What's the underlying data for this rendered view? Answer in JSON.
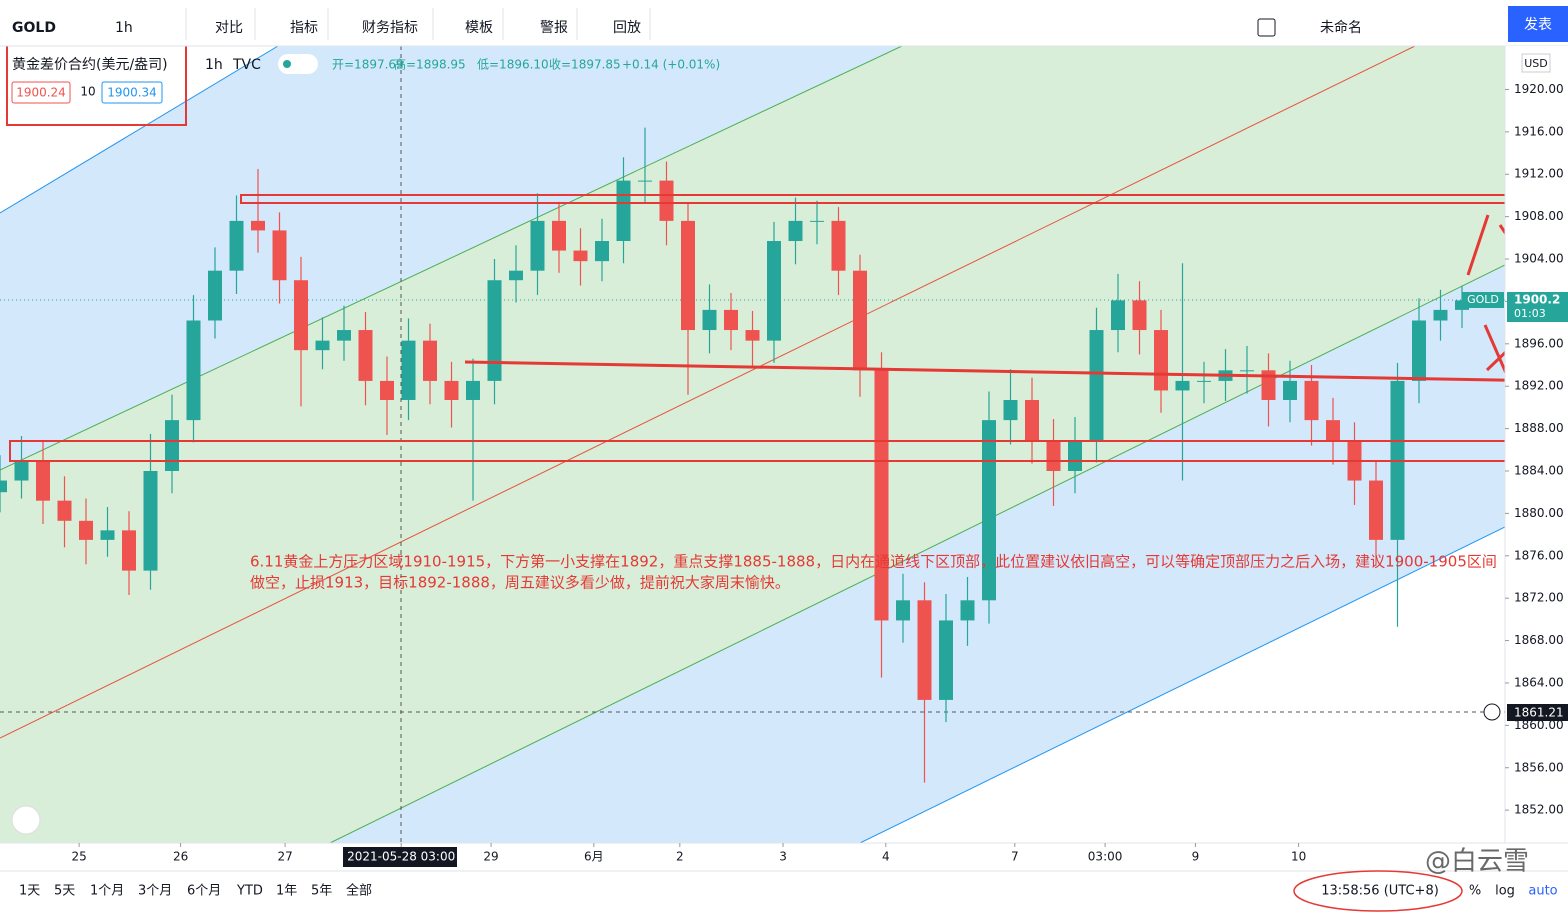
{
  "toolbar": {
    "symbol": "GOLD",
    "interval": "1h",
    "items": [
      "对比",
      "指标",
      "财务指标",
      "模板",
      "警报",
      "回放"
    ],
    "layout_name": "未命名",
    "publish": "发表"
  },
  "legend": {
    "name": "黄金差价合约(美元/盎司)",
    "interval": "1h",
    "source": "TVC",
    "open": "开=1897.69",
    "high": "高=1898.95",
    "low": "低=1896.10",
    "close": "收=1897.85",
    "change": "+0.14 (+0.01%)",
    "bid": "1900.24",
    "spread": "10",
    "ask": "1900.34"
  },
  "price_scale": {
    "currency": "USD",
    "symbol_label": "GOLD",
    "last_price": "1900.2",
    "countdown": "01:03",
    "crosshair_price": "1861.21"
  },
  "chart_data": {
    "type": "candlestick",
    "up_color": "#26a69a",
    "down_color": "#ef5350",
    "x": [
      0,
      5,
      10,
      15,
      20,
      25,
      30,
      35,
      40,
      45,
      50,
      55,
      60,
      65,
      70,
      75,
      80,
      85,
      90,
      95,
      100,
      105,
      110,
      115,
      120,
      125,
      130,
      135,
      140,
      145,
      150,
      155,
      160,
      165,
      170,
      175,
      180,
      185,
      190,
      195,
      200,
      205,
      210,
      215,
      220,
      225,
      230,
      235,
      240,
      245,
      250,
      255,
      260,
      265,
      270,
      275,
      280,
      285,
      290,
      295,
      300,
      305,
      310,
      315,
      320,
      325,
      330,
      335,
      340
    ],
    "open": [
      1882,
      1883.1,
      1885,
      1881.2,
      1879.3,
      1877.5,
      1878.4,
      1874.6,
      1884,
      1888.8,
      1898.2,
      1902.9,
      1907.6,
      1906.7,
      1902,
      1895.4,
      1896.3,
      1897.3,
      1892.5,
      1890.7,
      1896.3,
      1892.5,
      1890.7,
      1892.5,
      1902,
      1902.9,
      1907.6,
      1904.8,
      1903.8,
      1905.7,
      1911.4,
      1911.4,
      1907.6,
      1897.3,
      1899.2,
      1897.3,
      1896.3,
      1905.7,
      1907.6,
      1907.6,
      1902.9,
      1893.5,
      1869.9,
      1871.8,
      1862.4,
      1869.9,
      1871.8,
      1888.8,
      1890.7,
      1886.9,
      1884,
      1886.9,
      1897.3,
      1900.1,
      1897.3,
      1891.6,
      1892.5,
      1892.5,
      1893.5,
      1893.5,
      1890.7,
      1892.5,
      1888.8,
      1886.9,
      1883.1,
      1877.5,
      1892.5,
      1898.2,
      1899.2
    ],
    "high": [
      1885.5,
      1887.3,
      1886.8,
      1883.5,
      1881.4,
      1880.6,
      1880.2,
      1887.5,
      1891.2,
      1900.6,
      1905.1,
      1910.0,
      1912.5,
      1908.4,
      1904.2,
      1898.5,
      1899.6,
      1899.0,
      1894.8,
      1898.4,
      1897.9,
      1894.3,
      1894.6,
      1904.0,
      1905.3,
      1910.2,
      1909.4,
      1906.9,
      1907.8,
      1913.6,
      1916.4,
      1913.2,
      1909.3,
      1901.6,
      1900.8,
      1899.1,
      1907.5,
      1909.8,
      1909.5,
      1908.9,
      1904.4,
      1895.2,
      1874.3,
      1873.5,
      1872.4,
      1874.0,
      1891.5,
      1893.6,
      1892.8,
      1888.9,
      1889.1,
      1899.4,
      1902.6,
      1901.9,
      1899.2,
      1903.6,
      1894.3,
      1895.5,
      1895.8,
      1895.1,
      1894.4,
      1894.0,
      1890.9,
      1888.6,
      1884.9,
      1894.2,
      1900.3,
      1901.1,
      1901.5
    ],
    "low": [
      1880.1,
      1881.4,
      1879.0,
      1876.8,
      1875.2,
      1875.9,
      1872.3,
      1872.8,
      1881.9,
      1886.7,
      1896.5,
      1900.7,
      1904.6,
      1899.8,
      1890.1,
      1893.6,
      1894.4,
      1890.2,
      1887.4,
      1888.8,
      1890.3,
      1888.1,
      1881.2,
      1890.3,
      1899.9,
      1900.6,
      1902.7,
      1901.5,
      1901.9,
      1903.6,
      1909.2,
      1905.3,
      1891.2,
      1895.1,
      1895.4,
      1893.9,
      1894.2,
      1903.5,
      1905.4,
      1900.6,
      1891.0,
      1864.5,
      1867.8,
      1854.6,
      1860.3,
      1867.5,
      1869.6,
      1886.5,
      1884.7,
      1880.7,
      1881.9,
      1884.8,
      1895.2,
      1895.0,
      1889.5,
      1883.1,
      1890.4,
      1890.6,
      1891.3,
      1888.2,
      1888.6,
      1886.4,
      1884.6,
      1880.8,
      1875.1,
      1869.3,
      1890.4,
      1896.3,
      1897.5
    ],
    "close": [
      1883.1,
      1885,
      1881.2,
      1879.3,
      1877.5,
      1878.4,
      1874.6,
      1884,
      1888.8,
      1898.2,
      1902.9,
      1907.6,
      1906.7,
      1902,
      1895.4,
      1896.3,
      1897.3,
      1892.5,
      1890.7,
      1896.3,
      1892.5,
      1890.7,
      1892.5,
      1902,
      1902.9,
      1907.6,
      1904.8,
      1903.8,
      1905.7,
      1911.4,
      1911.4,
      1907.6,
      1897.3,
      1899.2,
      1897.3,
      1896.3,
      1905.7,
      1907.6,
      1907.6,
      1902.9,
      1893.5,
      1869.9,
      1871.8,
      1862.4,
      1869.9,
      1871.8,
      1888.8,
      1890.7,
      1886.9,
      1884,
      1886.9,
      1897.3,
      1900.1,
      1897.3,
      1891.6,
      1892.5,
      1892.5,
      1893.5,
      1893.5,
      1890.7,
      1892.5,
      1888.8,
      1886.9,
      1883.1,
      1877.5,
      1892.5,
      1898.2,
      1899.2,
      1900.1
    ],
    "xlim": [
      0,
      350
    ],
    "xticks": [
      {
        "value": 18.4,
        "label": "25"
      },
      {
        "value": 42,
        "label": "26"
      },
      {
        "value": 66.3,
        "label": "27"
      },
      {
        "value": 93.3,
        "label": "2021-05-28  03:00"
      },
      {
        "value": 114.2,
        "label": "29"
      },
      {
        "value": 138.1,
        "label": "6月"
      },
      {
        "value": 158.1,
        "label": "2"
      },
      {
        "value": 182.1,
        "label": "3"
      },
      {
        "value": 206,
        "label": "4"
      },
      {
        "value": 236,
        "label": "7"
      },
      {
        "value": 257,
        "label": "03:00"
      },
      {
        "value": 278,
        "label": "9"
      },
      {
        "value": 302,
        "label": "10"
      }
    ],
    "ylim": [
      1848.9,
      1924.1
    ],
    "yticks": [
      {
        "value": 1852,
        "label": "1852.00"
      },
      {
        "value": 1856,
        "label": "1856.00"
      },
      {
        "value": 1860,
        "label": "1860.00"
      },
      {
        "value": 1864,
        "label": "1864.00"
      },
      {
        "value": 1868,
        "label": "1868.00"
      },
      {
        "value": 1872,
        "label": "1872.00"
      },
      {
        "value": 1876,
        "label": "1876.00"
      },
      {
        "value": 1880,
        "label": "1880.00"
      },
      {
        "value": 1884,
        "label": "1884.00"
      },
      {
        "value": 1888,
        "label": "1888.00"
      },
      {
        "value": 1892,
        "label": "1892.00"
      },
      {
        "value": 1896,
        "label": "1896.00"
      },
      {
        "value": 1900,
        "label": "1900.00"
      },
      {
        "value": 1904,
        "label": "1904.00"
      },
      {
        "value": 1908,
        "label": "1908.00"
      },
      {
        "value": 1912,
        "label": "1912.00"
      },
      {
        "value": 1916,
        "label": "1916.00"
      },
      {
        "value": 1920,
        "label": "1920.00"
      }
    ],
    "annotation": [
      "6.11黄金上方压力区域1910-1915，下方第一小支撑在1892，重点支撑1885-1888，日内在通道线下区顶部，此位置建议依旧高空，可以等确定顶部压力之后入场，建议1900-1905区间",
      "做空，止损1913，目标1892-1888，周五建议多看少做，提前祝大家周末愉快。"
    ]
  },
  "bottom_bar": {
    "ranges": [
      "1天",
      "5天",
      "1个月",
      "3个月",
      "6个月",
      "YTD",
      "1年",
      "5年",
      "全部"
    ],
    "clock": "13:58:56 (UTC+8)",
    "percent": "%",
    "log": "log",
    "auto": "auto"
  },
  "watermark": "@白云雪"
}
